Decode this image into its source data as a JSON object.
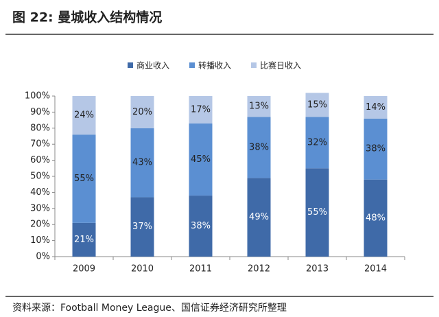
{
  "chart_data": {
    "type": "stacked_bar",
    "title": "图 22: 曼城收入结构情况",
    "source": "资料来源：Football Money League、国信证券经济研究所整理",
    "categories": [
      "2009",
      "2010",
      "2011",
      "2012",
      "2013",
      "2014"
    ],
    "series": [
      {
        "name": "商业收入",
        "color": "#3f6aa8",
        "values": [
          21,
          37,
          38,
          49,
          55,
          48
        ],
        "value_labels": [
          "21%",
          "37%",
          "38%",
          "49%",
          "55%",
          "48%"
        ]
      },
      {
        "name": "转播收入",
        "color": "#5b8fd2",
        "values": [
          55,
          43,
          45,
          38,
          32,
          38
        ],
        "value_labels": [
          "55%",
          "43%",
          "45%",
          "38%",
          "32%",
          "38%"
        ]
      },
      {
        "name": "比赛日收入",
        "color": "#b5c7e6",
        "values": [
          24,
          20,
          17,
          13,
          15,
          14
        ],
        "value_labels": [
          "24%",
          "20%",
          "17%",
          "13%",
          "15%",
          "14%"
        ]
      }
    ],
    "ylim": [
      0,
      100
    ],
    "yticks": [
      {
        "value": 0,
        "label": "0%"
      },
      {
        "value": 10,
        "label": "10%"
      },
      {
        "value": 20,
        "label": "20%"
      },
      {
        "value": 30,
        "label": "30%"
      },
      {
        "value": 40,
        "label": "40%"
      },
      {
        "value": 50,
        "label": "50%"
      },
      {
        "value": 60,
        "label": "60%"
      },
      {
        "value": 70,
        "label": "70%"
      },
      {
        "value": 80,
        "label": "80%"
      },
      {
        "value": 90,
        "label": "90%"
      },
      {
        "value": 100,
        "label": "100%"
      }
    ],
    "legend": "top"
  }
}
